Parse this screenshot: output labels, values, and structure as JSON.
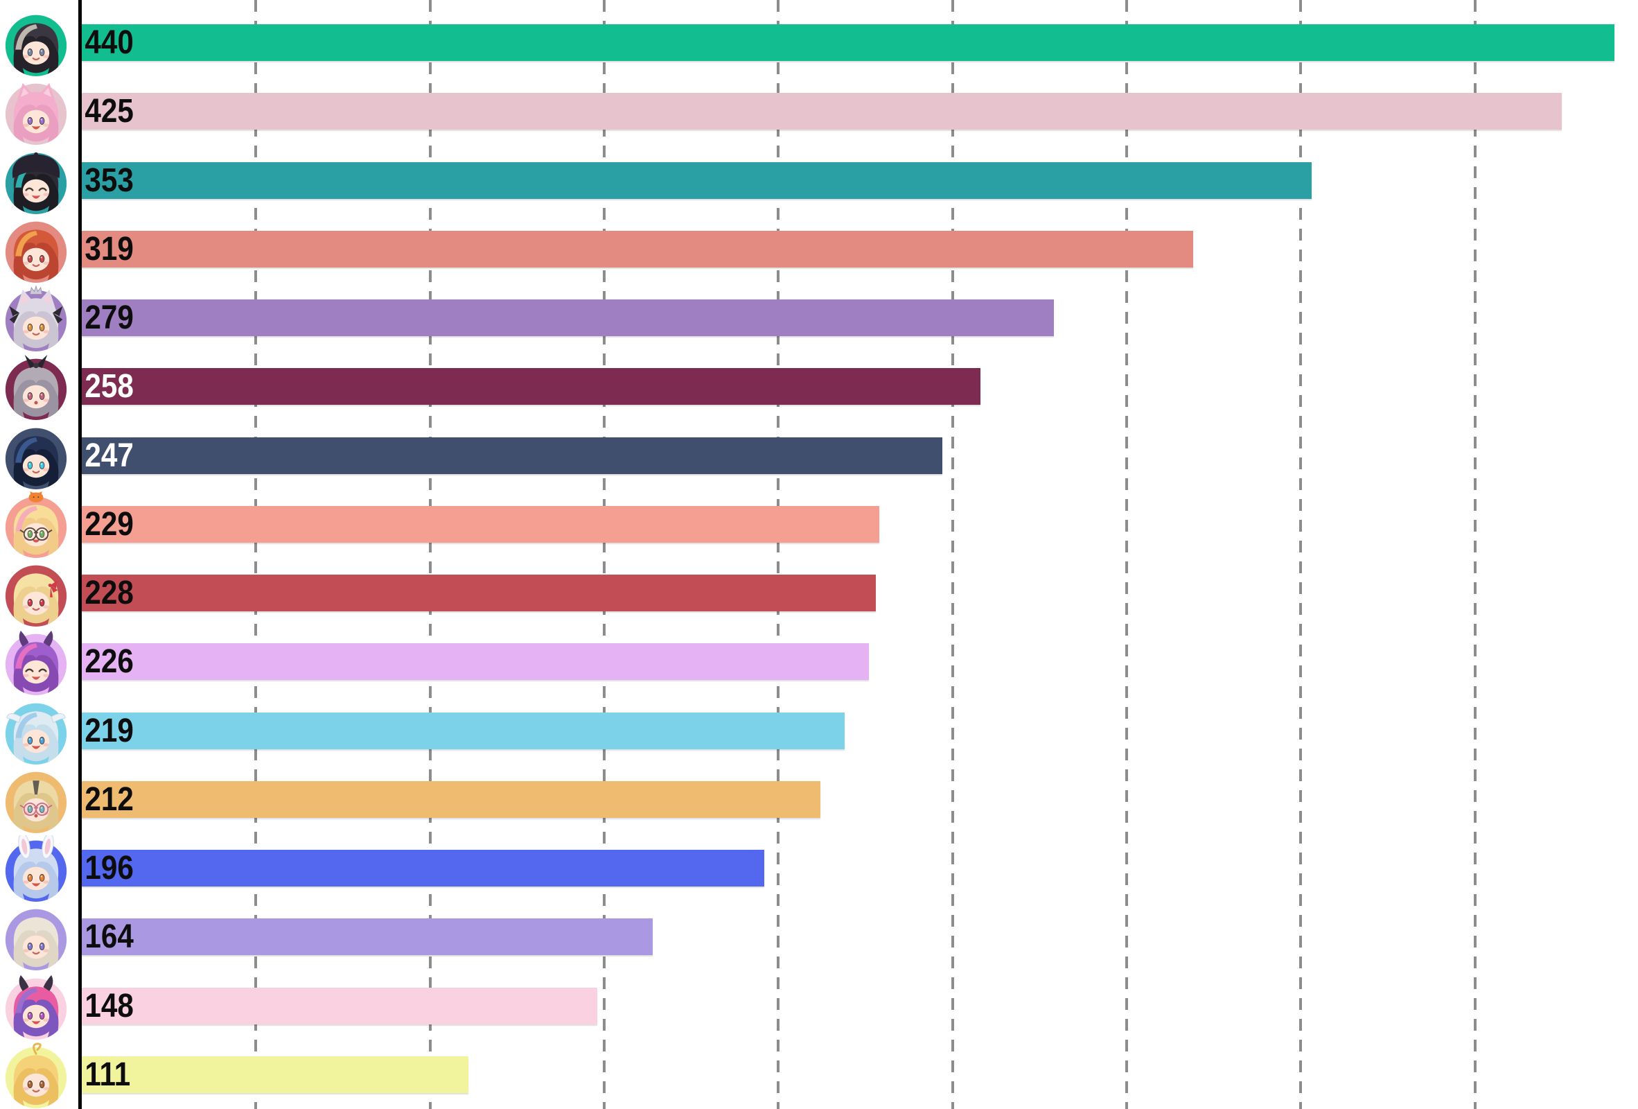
{
  "chart_data": {
    "type": "bar",
    "orientation": "horizontal",
    "title": "",
    "xlabel": "",
    "ylabel": "",
    "xlim": [
      0,
      447
    ],
    "gridline_interval": 50,
    "gridline_values": [
      50,
      100,
      150,
      200,
      250,
      300,
      350,
      400
    ],
    "grid_style": "dashed-vertical",
    "values": [
      440,
      425,
      353,
      319,
      279,
      258,
      247,
      229,
      228,
      226,
      219,
      212,
      196,
      164,
      148,
      111
    ],
    "bar_colors": [
      "#12bd8f",
      "#e7c3ce",
      "#2aa0a5",
      "#e38b80",
      "#a07ec2",
      "#7d2b50",
      "#414f6e",
      "#f59e92",
      "#c34d55",
      "#e5b2f3",
      "#7cd2e8",
      "#efbb70",
      "#5367ef",
      "#aa98e2",
      "#fad1e0",
      "#f2f49d"
    ],
    "value_label_colors": [
      "#0d0d0d",
      "#0d0d0d",
      "#0d0d0d",
      "#0d0d0d",
      "#0d0d0d",
      "#ffffff",
      "#ffffff",
      "#0d0d0d",
      "#0d0d0d",
      "#0d0d0d",
      "#0d0d0d",
      "#0d0d0d",
      "#0d0d0d",
      "#0d0d0d",
      "#0d0d0d",
      "#0d0d0d"
    ],
    "categories_are_avatars": true
  },
  "layout_colors": {
    "background": "#ffffff",
    "axis_line": "#000000",
    "gridline": "#8c8c8c"
  },
  "avatars": [
    {
      "name": "avatar-black-silver-hair",
      "bg": "#12bd8f",
      "hairF": "#3a3742",
      "hairB": "#252229",
      "streak": "#c6beb2",
      "streakType": "side",
      "eyes": "open",
      "eyeColor": "#7588aa",
      "mouth": "smile",
      "acc": []
    },
    {
      "name": "avatar-pink-cat-ears",
      "bg": "#e7c3ce",
      "hairF": "#f4aecb",
      "hairB": "#eb9fc0",
      "streak": null,
      "streakType": null,
      "eyes": "open",
      "eyeColor": "#9b6fd6",
      "mouth": "open",
      "acc": [
        "cat-ears"
      ]
    },
    {
      "name": "avatar-black-teal-beret",
      "bg": "#2aa0a5",
      "hairF": "#2d2c34",
      "hairB": "#1e1d24",
      "streak": "#2fb5b5",
      "streakType": "side",
      "eyes": "closed",
      "eyeColor": "#4a3c36",
      "mouth": "open",
      "acc": [
        "beret"
      ]
    },
    {
      "name": "avatar-orange-red-hair",
      "bg": "#e38b80",
      "hairF": "#d4593b",
      "hairB": "#bb4530",
      "streak": "#f2a44e",
      "streakType": "side",
      "eyes": "open",
      "eyeColor": "#cf4949",
      "mouth": "smile",
      "acc": []
    },
    {
      "name": "avatar-silver-crown-cat-ears",
      "bg": "#a07ec2",
      "hairF": "#ded9e4",
      "hairB": "#cac4d3",
      "streak": null,
      "streakType": null,
      "eyes": "open",
      "eyeColor": "#dd9440",
      "mouth": "smile",
      "acc": [
        "cat-ears",
        "crown",
        "side-bows"
      ]
    },
    {
      "name": "avatar-grey-hair-black-bow",
      "bg": "#7d2b50",
      "hairF": "#b2abb6",
      "hairB": "#9a93a1",
      "streak": null,
      "streakType": null,
      "eyes": "open",
      "eyeColor": "#c4637f",
      "mouth": "o",
      "acc": [
        "top-bow"
      ]
    },
    {
      "name": "avatar-navy-short-hair",
      "bg": "#414f6e",
      "hairF": "#243052",
      "hairB": "#161f38",
      "streak": "#3c5d92",
      "streakType": "side",
      "eyes": "open",
      "eyeColor": "#41cbe8",
      "mouth": "smile",
      "acc": []
    },
    {
      "name": "avatar-blonde-glasses-orange-cat",
      "bg": "#f59e92",
      "hairF": "#f7dd97",
      "hairB": "#f2cb89",
      "streak": "#f6aabb",
      "streakType": "side",
      "eyes": "open",
      "eyeColor": "#57aa49",
      "mouth": "open",
      "acc": [
        "glasses",
        "orange-cat"
      ]
    },
    {
      "name": "avatar-blonde-red-ribbon",
      "bg": "#c34d55",
      "hairF": "#f5e1a3",
      "hairB": "#eed08e",
      "streak": null,
      "streakType": null,
      "eyes": "open",
      "eyeColor": "#cf3b4b",
      "mouth": "smile",
      "acc": [
        "side-ribbon"
      ]
    },
    {
      "name": "avatar-purple-horns",
      "bg": "#e5b2f3",
      "hairF": "#9e5ecb",
      "hairB": "#8749b2",
      "streak": "#ea6fc2",
      "streakType": "side",
      "eyes": "closed",
      "eyeColor": "#4a3c36",
      "mouth": "open",
      "acc": [
        "horns"
      ],
      "horn": "#5e3b7a"
    },
    {
      "name": "avatar-white-blue-head-wings",
      "bg": "#7cd2e8",
      "hairF": "#dfebf3",
      "hairB": "#c6deec",
      "streak": "#9fcae9",
      "streakType": "side",
      "eyes": "open",
      "eyeColor": "#4ba3da",
      "mouth": "open",
      "acc": [
        "head-wings"
      ]
    },
    {
      "name": "avatar-blonde-pink-glasses",
      "bg": "#efbb70",
      "hairF": "#ecd9a3",
      "hairB": "#dfc78b",
      "streak": "#57504a",
      "streakType": "roots",
      "eyes": "open",
      "eyeColor": "#5bbac9",
      "mouth": "o",
      "acc": [
        "glasses-pink"
      ]
    },
    {
      "name": "avatar-rabbit-ears",
      "bg": "#5367ef",
      "hairF": "#cedbf2",
      "hairB": "#b7c9ea",
      "streak": null,
      "streakType": null,
      "eyes": "open",
      "eyeColor": "#ea8233",
      "mouth": "open",
      "acc": [
        "rabbit-ears"
      ]
    },
    {
      "name": "avatar-platinum-hair",
      "bg": "#aa98e2",
      "hairF": "#ebe4d7",
      "hairB": "#dfd6c6",
      "streak": null,
      "streakType": null,
      "eyes": "open",
      "eyeColor": "#837ada",
      "mouth": "smile",
      "acc": []
    },
    {
      "name": "avatar-pink-purple-horns",
      "bg": "#fad1e0",
      "hairF": "#ea5ca2",
      "hairB": "#7e56be",
      "streak": "#9a6fd0",
      "streakType": "side",
      "eyes": "open",
      "eyeColor": "#b455cb",
      "mouth": "open",
      "acc": [
        "horns"
      ],
      "horn": "#3b3144"
    },
    {
      "name": "avatar-golden-ahoge",
      "bg": "#f2f49d",
      "hairF": "#f5d279",
      "hairB": "#ecc061",
      "streak": null,
      "streakType": null,
      "eyes": "open",
      "eyeColor": "#b4632c",
      "mouth": "smile",
      "acc": [
        "ahoge"
      ]
    }
  ]
}
